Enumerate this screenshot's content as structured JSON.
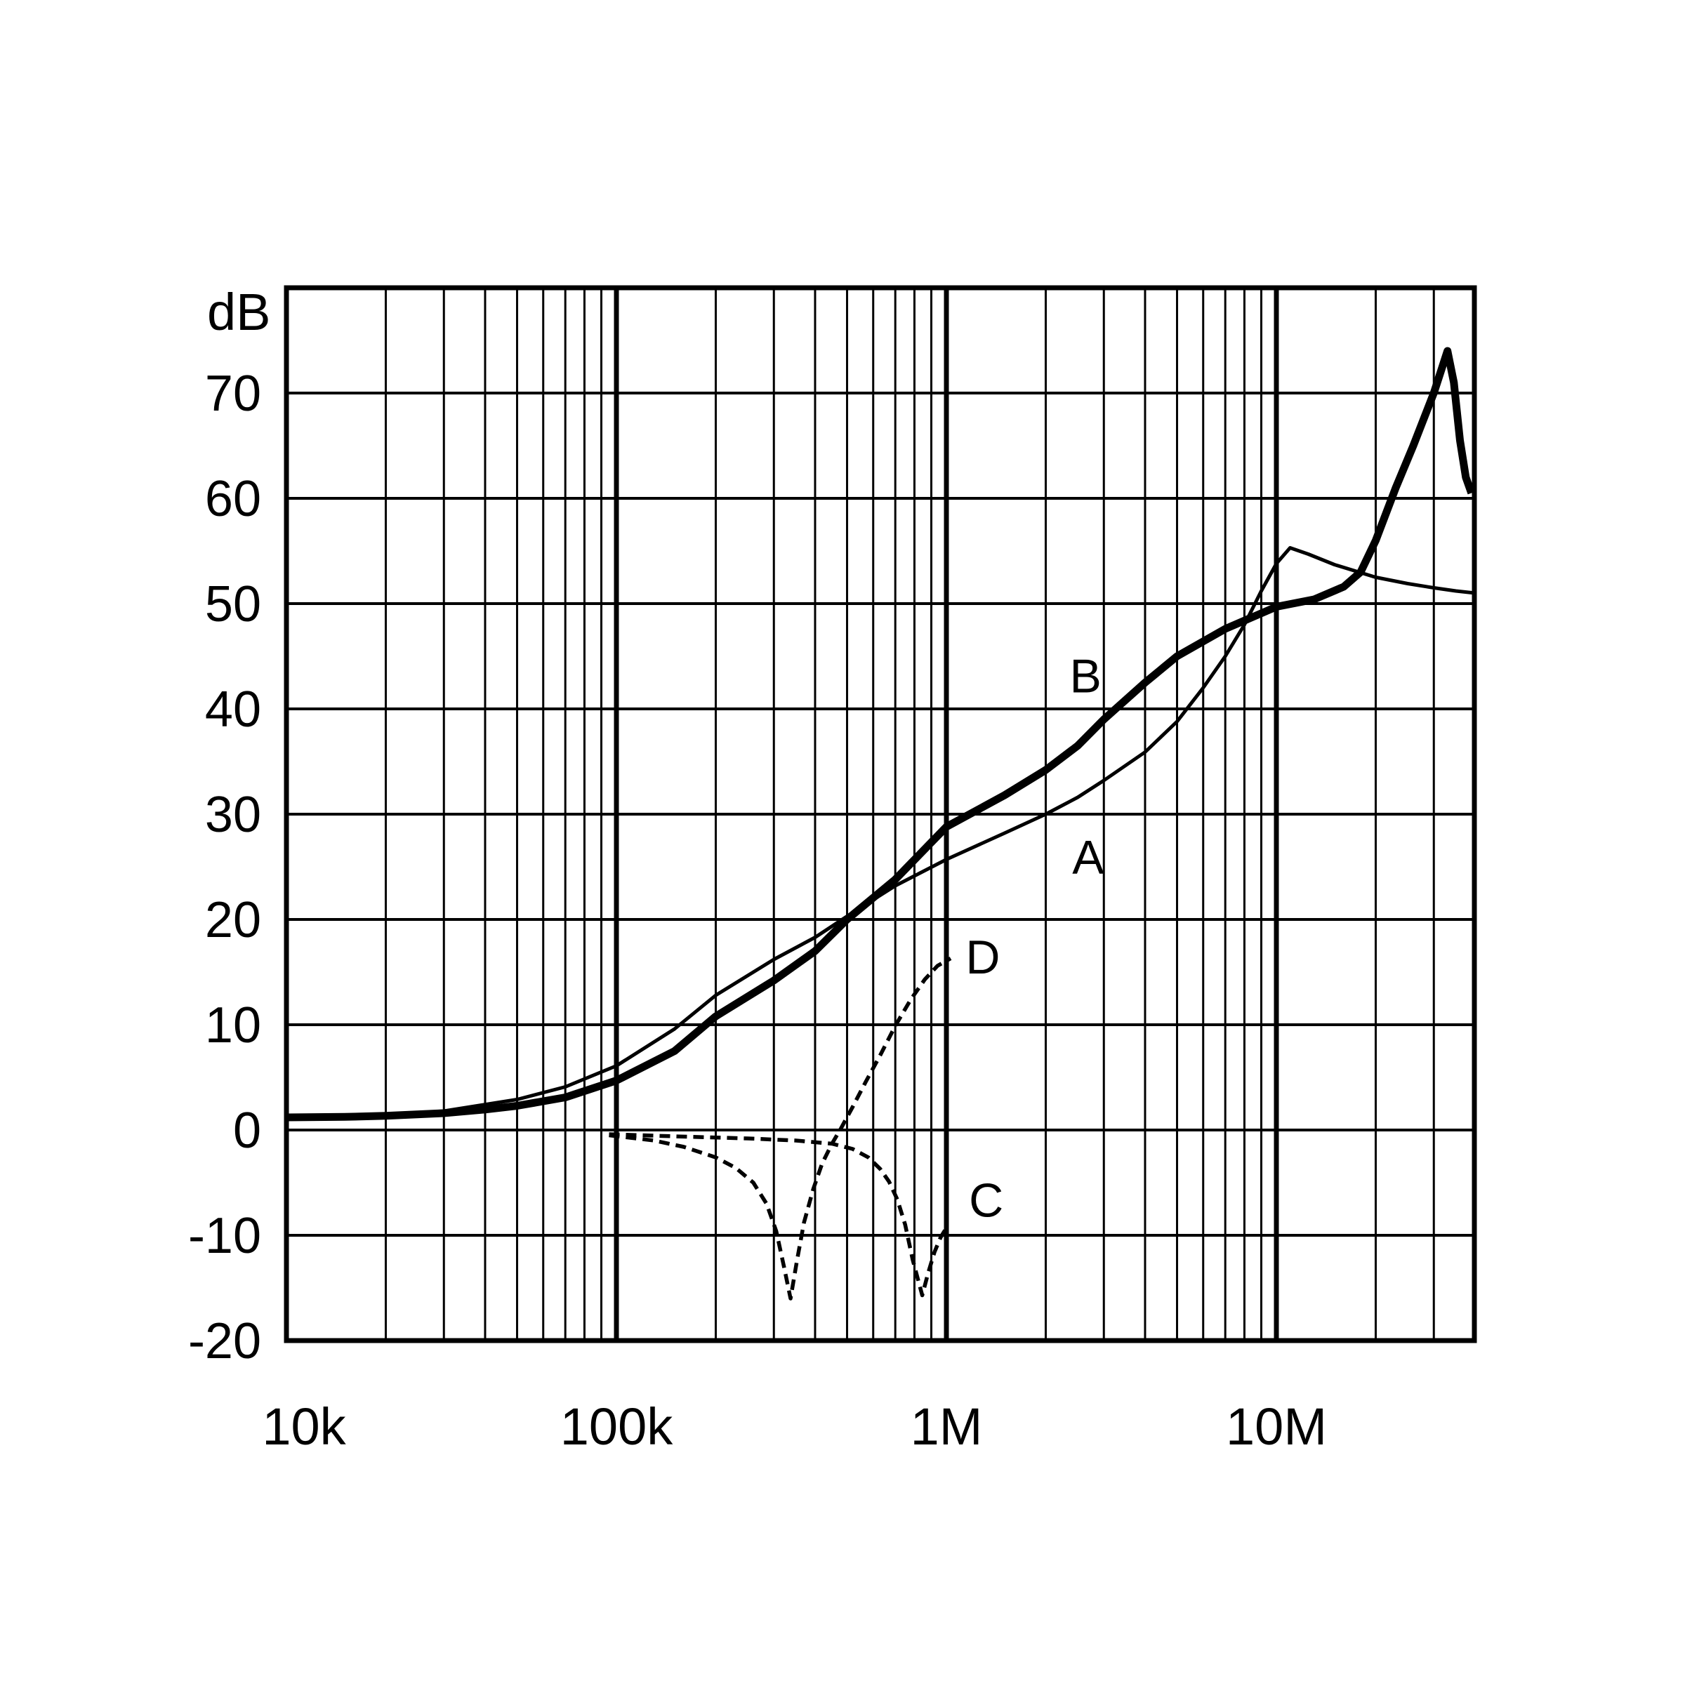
{
  "figure": {
    "background": "#ffffff",
    "ink": "#000000"
  },
  "chart_data": {
    "type": "line",
    "title": "",
    "ylabel": "dB",
    "xlabel": "",
    "x_scale": "log",
    "xlim": [
      10000,
      40000000
    ],
    "ylim": [
      -20,
      80
    ],
    "grid": "full log grid: minor decade lines thin, major decade lines thick, horizontal lines every 10 dB",
    "legend_position": "inline letters next to curves",
    "x_ticks": [
      {
        "f": 10000,
        "label": "10k",
        "dx": 25
      },
      {
        "f": 100000,
        "label": "100k",
        "dx": 0
      },
      {
        "f": 1000000,
        "label": "1M",
        "dx": 0
      },
      {
        "f": 10000000,
        "label": "10M",
        "dx": 0
      }
    ],
    "y_ticks": [
      70,
      60,
      50,
      40,
      30,
      20,
      10,
      0,
      -10,
      -20
    ],
    "x_major_gridlines": [
      100000,
      1000000,
      10000000
    ],
    "series": [
      {
        "name": "C",
        "style": "dashed-thin",
        "label": {
          "text": "C",
          "f": 1320000,
          "dB": -6.5
        },
        "points": [
          [
            95000,
            -0.4
          ],
          [
            150000,
            -0.6
          ],
          [
            250000,
            -0.8
          ],
          [
            350000,
            -1.0
          ],
          [
            450000,
            -1.3
          ],
          [
            520000,
            -1.8
          ],
          [
            580000,
            -2.6
          ],
          [
            630000,
            -3.7
          ],
          [
            670000,
            -4.9
          ],
          [
            710000,
            -6.6
          ],
          [
            750000,
            -9.0
          ],
          [
            790000,
            -12.3
          ],
          [
            845000,
            -15.7
          ],
          [
            880000,
            -13.6
          ],
          [
            920000,
            -11.6
          ],
          [
            960000,
            -10.2
          ],
          [
            1000000,
            -9.3
          ]
        ]
      },
      {
        "name": "D",
        "style": "dashed-thin",
        "label": {
          "text": "D",
          "f": 1290000,
          "dB": 16.6
        },
        "points": [
          [
            95000,
            -0.5
          ],
          [
            130000,
            -1.0
          ],
          [
            160000,
            -1.6
          ],
          [
            200000,
            -2.6
          ],
          [
            230000,
            -3.6
          ],
          [
            260000,
            -5.0
          ],
          [
            285000,
            -7.0
          ],
          [
            305000,
            -9.6
          ],
          [
            322000,
            -13.0
          ],
          [
            337000,
            -16.0
          ],
          [
            352000,
            -12.5
          ],
          [
            370000,
            -8.8
          ],
          [
            395000,
            -5.6
          ],
          [
            420000,
            -3.2
          ],
          [
            450000,
            -1.3
          ],
          [
            480000,
            0.2
          ],
          [
            520000,
            2.2
          ],
          [
            570000,
            4.6
          ],
          [
            630000,
            7.1
          ],
          [
            700000,
            9.9
          ],
          [
            780000,
            12.4
          ],
          [
            860000,
            14.3
          ],
          [
            940000,
            15.6
          ],
          [
            1030000,
            16.3
          ]
        ]
      },
      {
        "name": "A",
        "style": "solid-thin",
        "label": {
          "text": "A",
          "f": 2690000,
          "dB": 26.1
        },
        "points": [
          [
            10000,
            1.2
          ],
          [
            20000,
            1.4
          ],
          [
            30000,
            1.8
          ],
          [
            50000,
            2.9
          ],
          [
            70000,
            4.1
          ],
          [
            100000,
            6.1
          ],
          [
            150000,
            9.6
          ],
          [
            200000,
            12.8
          ],
          [
            300000,
            16.2
          ],
          [
            400000,
            18.3
          ],
          [
            500000,
            20.3
          ],
          [
            700000,
            23.2
          ],
          [
            1000000,
            25.7
          ],
          [
            1500000,
            28.2
          ],
          [
            2000000,
            30.0
          ],
          [
            2500000,
            31.6
          ],
          [
            3000000,
            33.2
          ],
          [
            4000000,
            35.9
          ],
          [
            5000000,
            38.8
          ],
          [
            6000000,
            42.0
          ],
          [
            7000000,
            45.0
          ],
          [
            8000000,
            48.0
          ],
          [
            9000000,
            51.2
          ],
          [
            10000000,
            53.8
          ],
          [
            11000000,
            55.3
          ],
          [
            12500000,
            54.7
          ],
          [
            15000000,
            53.7
          ],
          [
            20000000,
            52.5
          ],
          [
            25000000,
            51.9
          ],
          [
            30000000,
            51.5
          ],
          [
            35000000,
            51.2
          ],
          [
            40000000,
            51.0
          ]
        ]
      },
      {
        "name": "B",
        "style": "solid-thick",
        "label": {
          "text": "B",
          "f": 2640000,
          "dB": 43.3
        },
        "points": [
          [
            10000,
            1.2
          ],
          [
            15000,
            1.25
          ],
          [
            20000,
            1.35
          ],
          [
            30000,
            1.6
          ],
          [
            40000,
            1.95
          ],
          [
            50000,
            2.3
          ],
          [
            70000,
            3.1
          ],
          [
            100000,
            4.7
          ],
          [
            150000,
            7.5
          ],
          [
            200000,
            10.8
          ],
          [
            300000,
            14.2
          ],
          [
            400000,
            17.0
          ],
          [
            500000,
            20.0
          ],
          [
            700000,
            23.8
          ],
          [
            1000000,
            28.8
          ],
          [
            1500000,
            31.8
          ],
          [
            2000000,
            34.2
          ],
          [
            2500000,
            36.5
          ],
          [
            3000000,
            39.0
          ],
          [
            4000000,
            42.5
          ],
          [
            5000000,
            45.0
          ],
          [
            7000000,
            47.6
          ],
          [
            10000000,
            49.7
          ],
          [
            13000000,
            50.4
          ],
          [
            16000000,
            51.6
          ],
          [
            18000000,
            53.0
          ],
          [
            20000000,
            56.0
          ],
          [
            23000000,
            61.0
          ],
          [
            26000000,
            65.0
          ],
          [
            30000000,
            70.0
          ],
          [
            33000000,
            74.0
          ],
          [
            34500000,
            71.0
          ],
          [
            36000000,
            65.5
          ],
          [
            37500000,
            62.0
          ],
          [
            39000000,
            60.5
          ]
        ]
      }
    ]
  }
}
